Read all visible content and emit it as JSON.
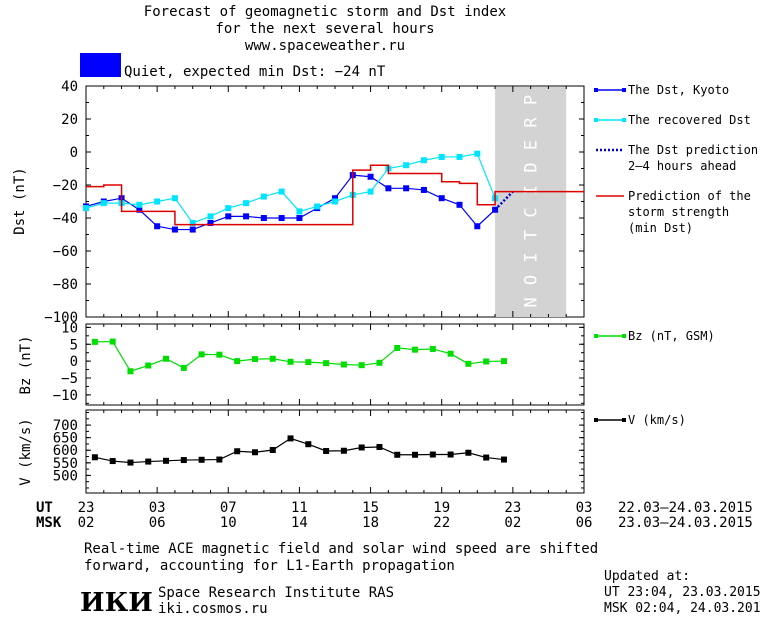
{
  "header": {
    "title_lines": [
      "Forecast of geomagnetic storm and Dst index",
      "for the next several hours",
      "www.spaceweather.ru"
    ],
    "status_text": "Quiet, expected min Dst: −24 nT",
    "status_color": "#0000ff"
  },
  "footer": {
    "note_lines": [
      "Real-time ACE magnetic field and solar wind speed are shifted",
      "forward, accounting for L1-Earth propagation"
    ],
    "logo_text": "ИКИ",
    "institute_name": "Space Research Institute RAS",
    "institute_url": "iki.cosmos.ru",
    "updated_label": "Updated at:",
    "updated_ut": "UT   23:04, 23.03.2015",
    "updated_msk": "MSK 02:04, 24.03.2015"
  },
  "time_axis": {
    "ut_label": "UT",
    "msk_label": "MSK",
    "ut_ticks": [
      "23",
      "03",
      "07",
      "11",
      "15",
      "19",
      "23",
      "03"
    ],
    "msk_ticks": [
      "02",
      "06",
      "10",
      "14",
      "18",
      "22",
      "02",
      "06"
    ],
    "ut_range": "22.03–24.03.2015",
    "msk_range": "23.03–24.03.2015"
  },
  "chart_data": [
    {
      "type": "line",
      "ylabel": "Dst (nT)",
      "ylim": [
        -100,
        40
      ],
      "xlim": [
        0,
        28
      ],
      "yticks": [
        40,
        20,
        0,
        -20,
        -40,
        -60,
        -80,
        -100
      ],
      "prediction_region": {
        "x_start": 23,
        "x_end": 27,
        "label": "PREDICTION",
        "color": "#d3d3d3"
      },
      "series": [
        {
          "name": "The Dst, Kyoto",
          "color": "#0000ff",
          "style": "line-square",
          "x": [
            0,
            1,
            2,
            3,
            4,
            5,
            6,
            7,
            8,
            9,
            10,
            11,
            12,
            13,
            14,
            15,
            16,
            17,
            18,
            19,
            20,
            21,
            22,
            23
          ],
          "y": [
            -33,
            -30,
            -28,
            -35,
            -45,
            -47,
            -47,
            -43,
            -39,
            -39,
            -40,
            -40,
            -40,
            -34,
            -28,
            -14,
            -15,
            -22,
            -22,
            -23,
            -28,
            -32,
            -45,
            -35
          ]
        },
        {
          "name": "The recovered Dst",
          "color": "#00e5ff",
          "style": "line-square",
          "x": [
            0,
            1,
            2,
            3,
            4,
            5,
            6,
            7,
            8,
            9,
            10,
            11,
            12,
            13,
            14,
            15,
            16,
            17,
            18,
            19,
            20,
            21,
            22,
            23
          ],
          "y": [
            -34,
            -31,
            -31,
            -32,
            -30,
            -28,
            -43,
            -39,
            -34,
            -31,
            -27,
            -24,
            -36,
            -33,
            -30,
            -26,
            -24,
            -10,
            -8,
            -5,
            -3,
            -3,
            -1,
            -28
          ]
        },
        {
          "name": "The Dst prediction\n2–4 hours ahead",
          "color": "#0000cc",
          "style": "dotted",
          "x": [
            23,
            24
          ],
          "y": [
            -35,
            -24
          ]
        },
        {
          "name": "Prediction of the\nstorm strength\n(min Dst)",
          "color": "#dd0000",
          "style": "step",
          "x": [
            0,
            1,
            2,
            3,
            4,
            5,
            6,
            7,
            8,
            9,
            10,
            11,
            12,
            13,
            14,
            15,
            16,
            17,
            18,
            19,
            20,
            21,
            22,
            23,
            24,
            25,
            26,
            27
          ],
          "y": [
            -21,
            -20,
            -36,
            -36,
            -36,
            -44,
            -44,
            -44,
            -44,
            -44,
            -44,
            -44,
            -44,
            -44,
            -44,
            -11,
            -8,
            -13,
            -13,
            -13,
            -18,
            -19,
            -32,
            -24,
            -24,
            -24,
            -24,
            -24
          ]
        }
      ]
    },
    {
      "type": "line",
      "ylabel": "Bz (nT)",
      "ylim": [
        -13,
        11
      ],
      "xlim": [
        0,
        28
      ],
      "yticks": [
        10,
        5,
        0,
        -5,
        -10
      ],
      "series": [
        {
          "name": "Bz (nT, GSM)",
          "color": "#00dd00",
          "style": "line-square",
          "x": [
            0.5,
            1.5,
            2.5,
            3.5,
            4.5,
            5.5,
            6.5,
            7.5,
            8.5,
            9.5,
            10.5,
            11.5,
            12.5,
            13.5,
            14.5,
            15.5,
            16.5,
            17.5,
            18.5,
            19.5,
            20.5,
            21.5,
            22.5,
            23.5
          ],
          "y": [
            5.7,
            5.8,
            -3.0,
            -1.3,
            0.7,
            -2.0,
            2.0,
            1.9,
            0.0,
            0.6,
            0.7,
            -0.2,
            -0.3,
            -0.6,
            -1.0,
            -1.2,
            -0.5,
            3.9,
            3.4,
            3.6,
            2.2,
            -0.8,
            -0.1,
            0.0
          ]
        }
      ]
    },
    {
      "type": "line",
      "ylabel": "V (km/s)",
      "ylim": [
        430,
        760
      ],
      "xlim": [
        0,
        28
      ],
      "yticks": [
        700,
        650,
        600,
        550,
        500
      ],
      "series": [
        {
          "name": "V (km/s)",
          "color": "#000000",
          "style": "line-square",
          "x": [
            0.5,
            1.5,
            2.5,
            3.5,
            4.5,
            5.5,
            6.5,
            7.5,
            8.5,
            9.5,
            10.5,
            11.5,
            12.5,
            13.5,
            14.5,
            15.5,
            16.5,
            17.5,
            18.5,
            19.5,
            20.5,
            21.5,
            22.5,
            23.5
          ],
          "y": [
            572,
            557,
            551,
            555,
            558,
            561,
            562,
            563,
            596,
            592,
            601,
            647,
            624,
            597,
            598,
            611,
            613,
            582,
            582,
            583,
            583,
            590,
            571,
            563
          ]
        }
      ]
    }
  ]
}
